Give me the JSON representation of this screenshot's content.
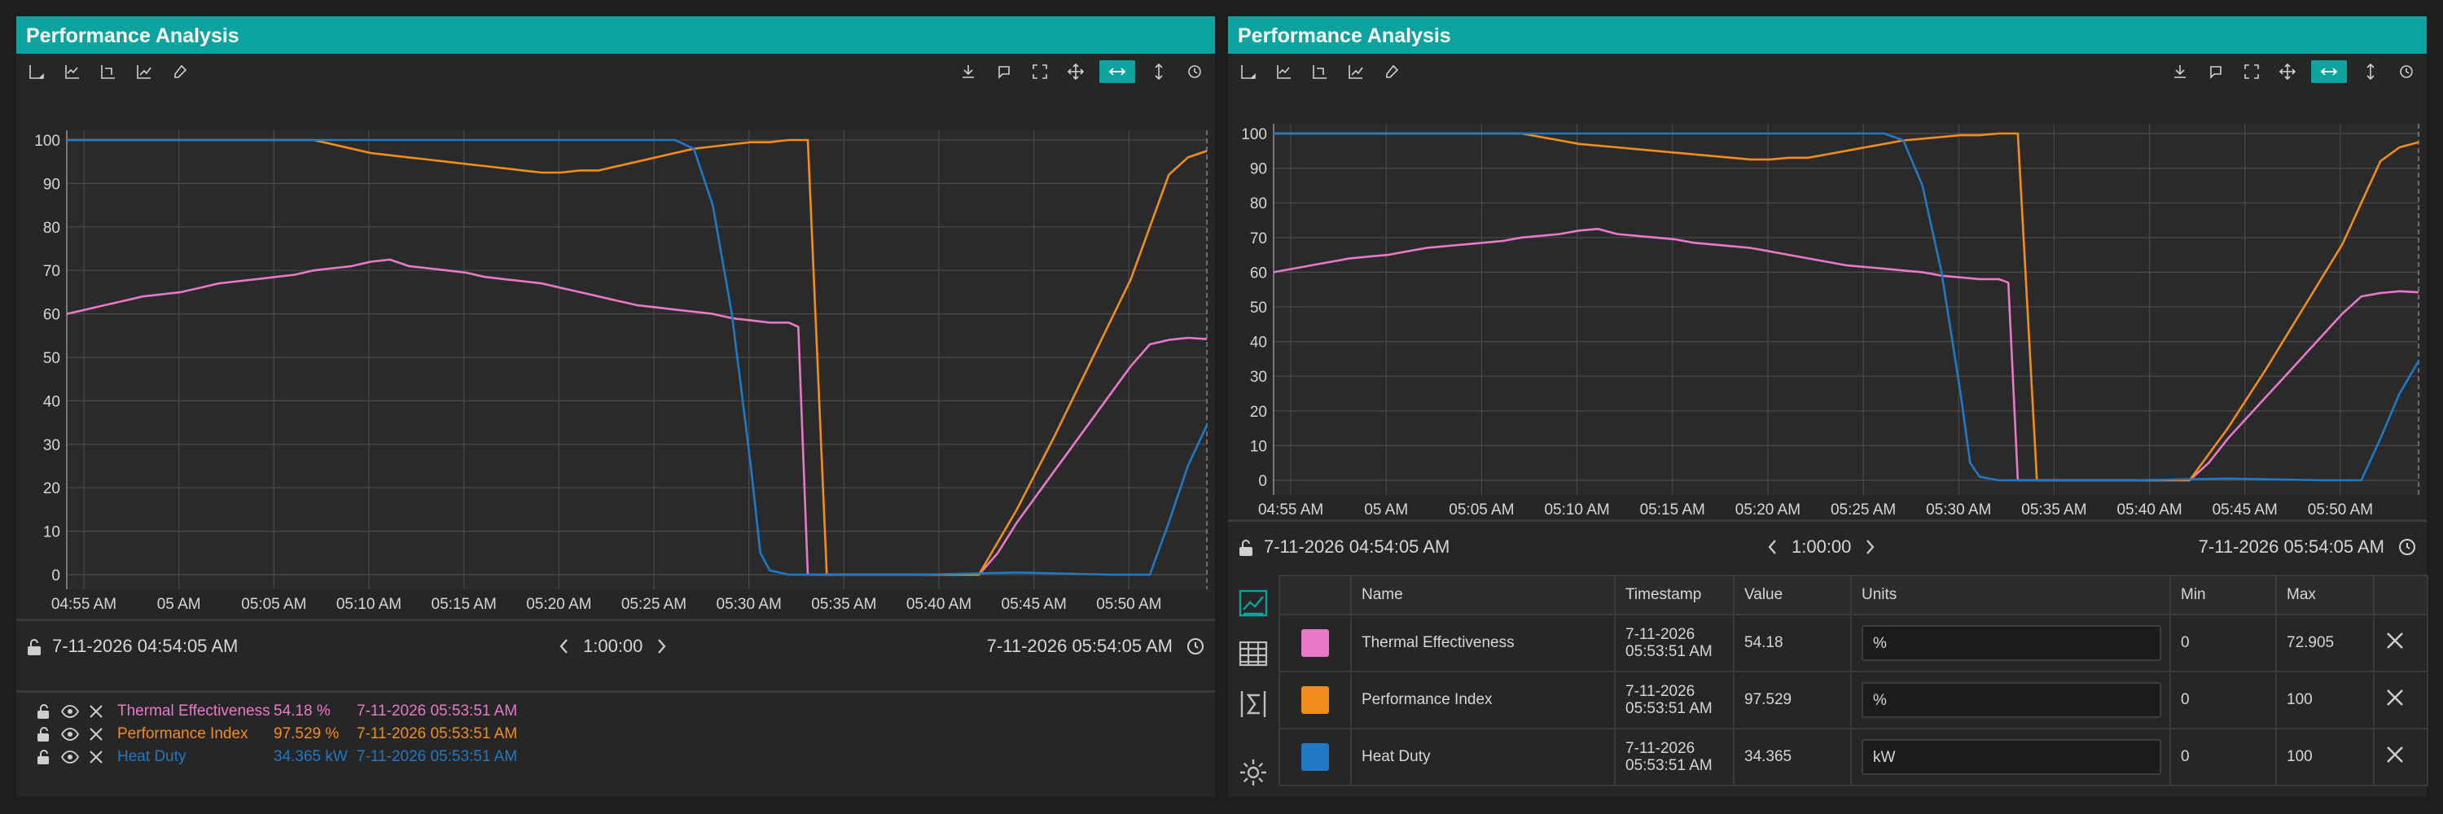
{
  "colors": {
    "accent": "#0ca39e",
    "thermal": "#e879c9",
    "performance": "#f28c1a",
    "heat": "#1f79c4"
  },
  "toolbar_icons": {
    "left": [
      "axis-icon",
      "trend-axis-icon",
      "reset-axis-icon",
      "chart-line-icon",
      "eraser-icon"
    ],
    "right": [
      "download-icon",
      "snapshot-icon",
      "fullscreen-icon",
      "pan-icon",
      "zoom-horizontal-icon",
      "zoom-vertical-icon",
      "refresh-icon"
    ]
  },
  "left_panel": {
    "title": "Performance Analysis",
    "range": {
      "start": "7-11-2026 04:54:05 AM",
      "duration": "1:00:00",
      "end": "7-11-2026 05:54:05 AM"
    },
    "legend": [
      {
        "name": "Thermal Effectiveness",
        "value": "54.18",
        "unit": "%",
        "timestamp": "7-11-2026 05:53:51 AM",
        "color": "#e879c9"
      },
      {
        "name": "Performance Index",
        "value": "97.529",
        "unit": "%",
        "timestamp": "7-11-2026 05:53:51 AM",
        "color": "#f28c1a"
      },
      {
        "name": "Heat Duty",
        "value": "34.365",
        "unit": "kW",
        "timestamp": "7-11-2026 05:53:51 AM",
        "color": "#1f79c4"
      }
    ]
  },
  "right_panel": {
    "title": "Performance Analysis",
    "range": {
      "start": "7-11-2026 04:54:05 AM",
      "duration": "1:00:00",
      "end": "7-11-2026 05:54:05 AM"
    },
    "side_tabs": [
      "trend-chart-icon",
      "calendar-icon",
      "sigma-icon",
      "gear-icon"
    ],
    "table": {
      "headers": [
        "Name",
        "Timestamp",
        "Value",
        "Units",
        "Min",
        "Max"
      ],
      "rows": [
        {
          "name": "Thermal Effectiveness",
          "timestamp": "7-11-2026 05:53:51 AM",
          "value": "54.18",
          "units": "%",
          "min": "0",
          "max": "72.905",
          "color": "#e879c9"
        },
        {
          "name": "Performance Index",
          "timestamp": "7-11-2026 05:53:51 AM",
          "value": "97.529",
          "units": "%",
          "min": "0",
          "max": "100",
          "color": "#f28c1a"
        },
        {
          "name": "Heat Duty",
          "timestamp": "7-11-2026 05:53:51 AM",
          "value": "34.365",
          "units": "kW",
          "min": "0",
          "max": "100",
          "color": "#1f79c4"
        }
      ]
    }
  },
  "chart_data": [
    {
      "type": "line",
      "x_ticks": [
        "04:55 AM",
        "05 AM",
        "05:05 AM",
        "05:10 AM",
        "05:15 AM",
        "05:20 AM",
        "05:25 AM",
        "05:30 AM",
        "05:35 AM",
        "05:40 AM",
        "05:45 AM",
        "05:50 AM"
      ],
      "y_ticks": [
        "0",
        "10",
        "20",
        "30",
        "40",
        "50",
        "60",
        "70",
        "80",
        "90",
        "100"
      ],
      "xlim": [
        0,
        60
      ],
      "ylim": [
        0,
        100
      ],
      "grid": true,
      "series": [
        {
          "name": "Thermal Effectiveness",
          "color": "#e879c9",
          "x": [
            0,
            1,
            2,
            3,
            4,
            5,
            6,
            7,
            8,
            9,
            10,
            11,
            12,
            13,
            14,
            15,
            16,
            17,
            18,
            19,
            20,
            21,
            22,
            23,
            24,
            25,
            26,
            27,
            28,
            29,
            30,
            31,
            32,
            33,
            34,
            35,
            36,
            37,
            38,
            38.5,
            39,
            40,
            45,
            47,
            48,
            49,
            50,
            51,
            52,
            53,
            54,
            55,
            56,
            57,
            58,
            59,
            60
          ],
          "y": [
            60,
            61,
            62,
            63,
            64,
            64.5,
            65,
            66,
            67,
            67.5,
            68,
            68.5,
            69,
            70,
            70.5,
            71,
            72,
            72.5,
            71,
            70.5,
            70,
            69.5,
            68.5,
            68,
            67.5,
            67,
            66,
            65,
            64,
            63,
            62,
            61.5,
            61,
            60.5,
            60,
            59,
            58.5,
            58,
            58,
            57,
            0,
            0,
            0,
            0,
            0,
            5,
            12,
            18,
            24,
            30,
            36,
            42,
            48,
            53,
            54,
            54.5,
            54.2
          ]
        },
        {
          "name": "Performance Index",
          "color": "#f28c1a",
          "x": [
            0,
            13,
            14,
            15,
            16,
            17,
            18,
            19,
            20,
            21,
            22,
            23,
            24,
            25,
            26,
            27,
            28,
            29,
            30,
            31,
            32,
            33,
            34,
            35,
            36,
            37,
            38,
            38.5,
            39,
            40,
            45,
            47,
            48,
            50,
            52,
            54,
            56,
            57,
            58,
            59,
            60
          ],
          "y": [
            100,
            100,
            99,
            98,
            97,
            96.5,
            96,
            95.5,
            95,
            94.5,
            94,
            93.5,
            93,
            92.5,
            92.5,
            93,
            93,
            94,
            95,
            96,
            97,
            98,
            98.5,
            99,
            99.5,
            99.5,
            100,
            100,
            100,
            0,
            0,
            0,
            0,
            15,
            32,
            50,
            68,
            80,
            92,
            96,
            97.5
          ]
        },
        {
          "name": "Heat Duty",
          "color": "#1f79c4",
          "x": [
            0,
            32,
            33,
            34,
            35,
            36,
            36.5,
            37,
            38,
            40,
            45,
            50,
            55,
            57,
            58,
            59,
            60
          ],
          "y": [
            100,
            100,
            98,
            85,
            60,
            25,
            5,
            1,
            0,
            0,
            0,
            0.5,
            0,
            0,
            12,
            25,
            34.4
          ]
        }
      ]
    }
  ]
}
